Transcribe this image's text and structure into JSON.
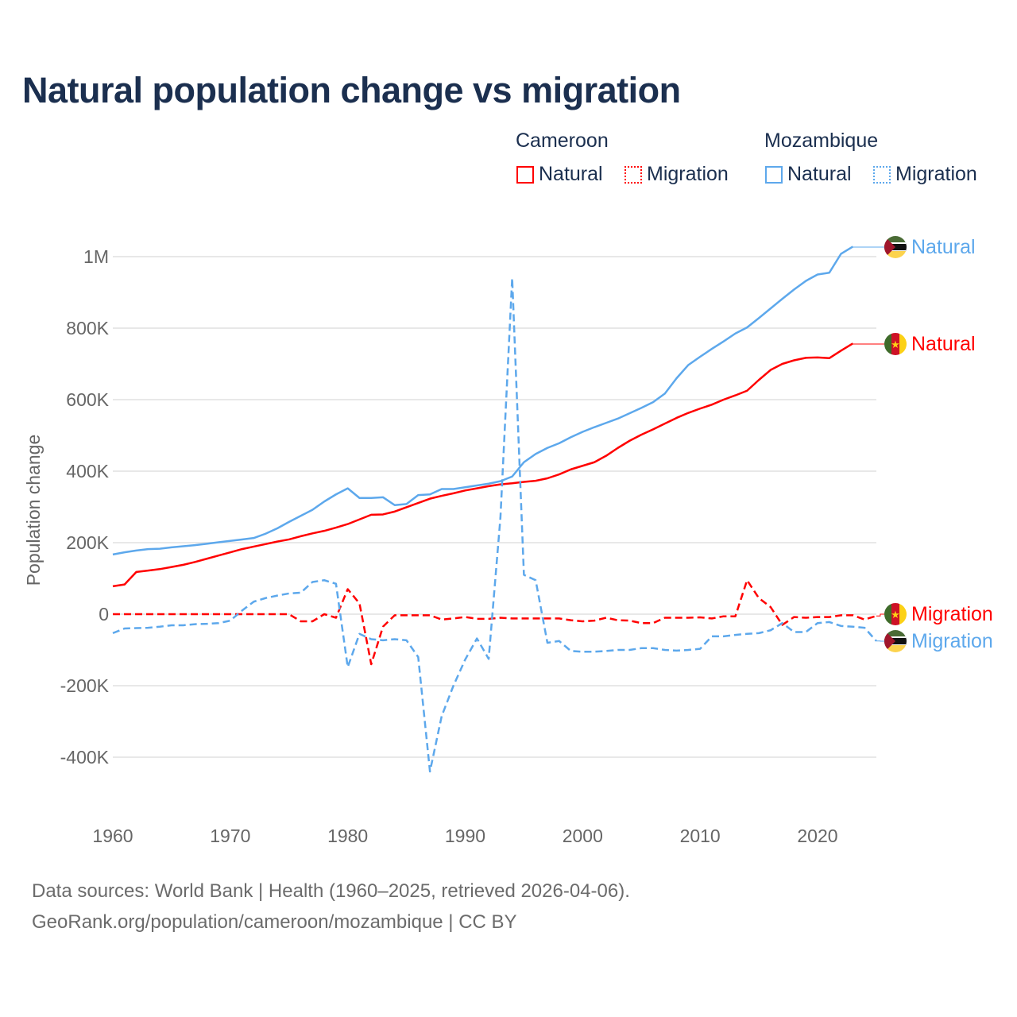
{
  "title": "Natural population change vs migration",
  "legend": {
    "groups": [
      {
        "name": "Cameroon",
        "items": [
          "Natural",
          "Migration"
        ],
        "color": "#ff0000"
      },
      {
        "name": "Mozambique",
        "items": [
          "Natural",
          "Migration"
        ],
        "color": "#5da8ec"
      }
    ]
  },
  "footer": {
    "line1": "Data sources: World Bank | Health (1960–2025, retrieved 2026-04-06).",
    "line2": "GeoRank.org/population/cameroon/mozambique | CC BY"
  },
  "chart_data": {
    "type": "line",
    "title": "Natural population change vs migration",
    "xlabel": "",
    "ylabel": "Population change",
    "xlim": [
      1960,
      2025
    ],
    "ylim": [
      -450000,
      1050000
    ],
    "xticks": [
      1960,
      1970,
      1980,
      1990,
      2000,
      2010,
      2020
    ],
    "xtick_labels": [
      "1960",
      "1970",
      "1980",
      "1990",
      "2000",
      "2010",
      "2020"
    ],
    "yticks": [
      -400000,
      -200000,
      0,
      200000,
      400000,
      600000,
      800000,
      1000000
    ],
    "ytick_labels": [
      "-400K",
      "-200K",
      "0",
      "200K",
      "400K",
      "600K",
      "800K",
      "1M"
    ],
    "grid": true,
    "legend_position": "top-right",
    "series": [
      {
        "name": "Cameroon Natural",
        "end_label": "Natural",
        "color": "#ff0000",
        "dash": false,
        "start_year": 1960,
        "values_k": [
          78,
          83,
          118,
          122,
          126,
          132,
          138,
          146,
          155,
          164,
          173,
          182,
          189,
          196,
          203,
          209,
          218,
          226,
          233,
          242,
          252,
          265,
          278,
          279,
          287,
          299,
          311,
          323,
          331,
          338,
          346,
          352,
          358,
          363,
          366,
          370,
          373,
          380,
          391,
          405,
          415,
          425,
          443,
          465,
          485,
          502,
          517,
          533,
          549,
          563,
          575,
          586,
          600,
          612,
          625,
          655,
          683,
          700,
          710,
          717,
          718,
          716,
          737,
          757
        ]
      },
      {
        "name": "Cameroon Migration",
        "end_label": "Migration",
        "color": "#ff0000",
        "dash": true,
        "start_year": 1960,
        "values_k": [
          0,
          0,
          0,
          0,
          0,
          0,
          0,
          0,
          0,
          0,
          0,
          0,
          0,
          0,
          0,
          0,
          -20,
          -20,
          0,
          -10,
          70,
          30,
          -140,
          -35,
          -3,
          -3,
          -3,
          -3,
          -15,
          -12,
          -8,
          -13,
          -13,
          -10,
          -12,
          -12,
          -12,
          -12,
          -12,
          -17,
          -20,
          -18,
          -10,
          -17,
          -18,
          -25,
          -25,
          -10,
          -10,
          -10,
          -9,
          -12,
          -6,
          -6,
          95,
          45,
          20,
          -30,
          -8,
          -10,
          -8,
          -8,
          -3,
          -3,
          -15,
          -5
        ]
      },
      {
        "name": "Mozambique Natural",
        "end_label": "Natural",
        "color": "#5da8ec",
        "dash": false,
        "start_year": 1960,
        "values_k": [
          167,
          173,
          178,
          182,
          183,
          187,
          190,
          193,
          197,
          201,
          205,
          209,
          213,
          225,
          240,
          258,
          275,
          292,
          315,
          335,
          352,
          325,
          325,
          327,
          305,
          308,
          333,
          335,
          350,
          350,
          355,
          360,
          365,
          372,
          385,
          425,
          448,
          465,
          478,
          495,
          510,
          523,
          535,
          547,
          562,
          577,
          593,
          617,
          660,
          697,
          720,
          742,
          763,
          785,
          802,
          828,
          855,
          882,
          908,
          932,
          950,
          955,
          1008,
          1028
        ]
      },
      {
        "name": "Mozambique Migration",
        "end_label": "Migration",
        "color": "#5da8ec",
        "dash": true,
        "start_year": 1960,
        "values_k": [
          -53,
          -40,
          -39,
          -38,
          -35,
          -31,
          -31,
          -28,
          -27,
          -25,
          -18,
          10,
          35,
          45,
          52,
          58,
          60,
          90,
          95,
          85,
          -148,
          -55,
          -70,
          -73,
          -70,
          -73,
          -120,
          -440,
          -285,
          -200,
          -127,
          -68,
          -125,
          270,
          940,
          110,
          95,
          -80,
          -75,
          -103,
          -105,
          -105,
          -103,
          -100,
          -100,
          -95,
          -95,
          -100,
          -102,
          -100,
          -97,
          -62,
          -62,
          -58,
          -55,
          -53,
          -45,
          -25,
          -50,
          -50,
          -25,
          -22,
          -33,
          -35,
          -38,
          -75
        ]
      }
    ]
  }
}
